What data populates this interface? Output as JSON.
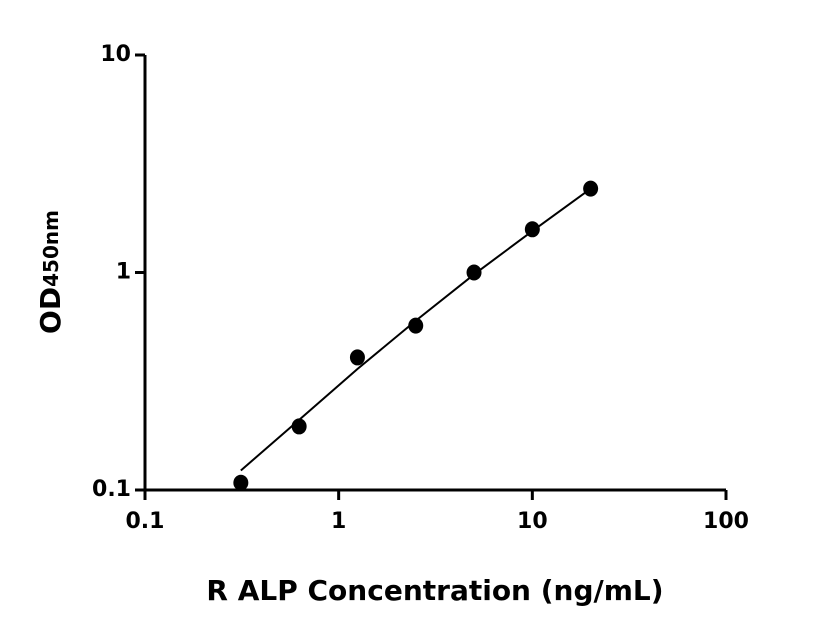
{
  "chart_data": {
    "type": "scatter",
    "xlabel": "R ALP Concentration (ng/mL)",
    "ylabel": "OD",
    "ylabel_subscript": "450nm",
    "xscale": "log",
    "yscale": "log",
    "xlim": [
      0.1,
      100
    ],
    "xticks": [
      0.1,
      1,
      10,
      100
    ],
    "ylim": [
      0.1,
      10
    ],
    "yticks": [
      0.1,
      1,
      10
    ],
    "grid": false,
    "series": [
      {
        "mode": "markers",
        "color": "#000000",
        "x": [
          0.3125,
          0.625,
          1.25,
          2.5,
          5,
          10,
          20
        ],
        "values": [
          0.108,
          0.196,
          0.407,
          0.57,
          1.0,
          1.58,
          2.43
        ]
      },
      {
        "mode": "line",
        "color": "#000000",
        "x": [
          0.3125,
          0.625,
          1.25,
          2.5,
          5,
          10,
          20
        ],
        "values": [
          0.123,
          0.21,
          0.36,
          0.6,
          0.98,
          1.55,
          2.43
        ]
      }
    ]
  }
}
